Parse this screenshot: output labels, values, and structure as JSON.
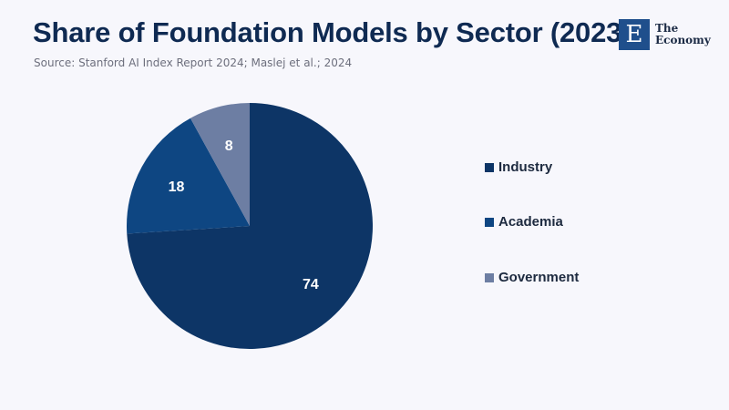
{
  "header": {
    "title": "Share of Foundation Models by Sector (2023)",
    "source": "Source: Stanford AI Index Report 2024; Maslej et al.; 2024"
  },
  "logo": {
    "mark": "E",
    "line1": "The",
    "line2": "Economy",
    "color": "#1f4f8c"
  },
  "chart_data": {
    "type": "pie",
    "categories": [
      "Industry",
      "Academia",
      "Government"
    ],
    "values": [
      74,
      18,
      8
    ],
    "colors": [
      "#0d3566",
      "#0e4682",
      "#6d7ea3"
    ],
    "data_labels": [
      "74",
      "18",
      "8"
    ],
    "legend": "right"
  }
}
